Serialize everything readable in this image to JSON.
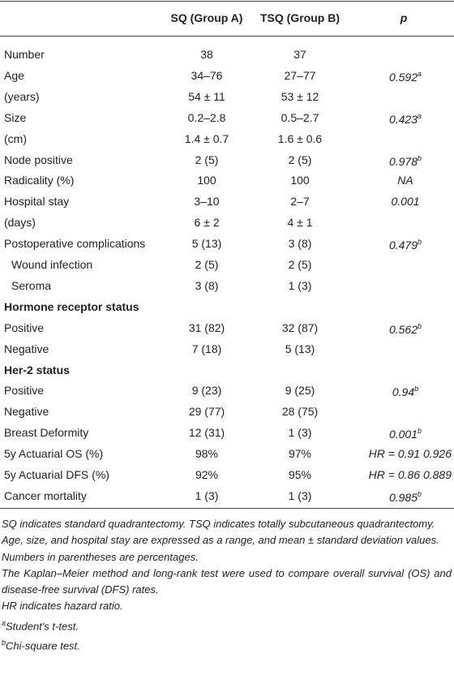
{
  "table": {
    "header": [
      "SQ (Group A)",
      "TSQ (Group B)",
      "p"
    ],
    "rows": [
      {
        "label": "Number",
        "sq": "38",
        "tsq": "37"
      },
      {
        "label": "Age",
        "sq": "34–76",
        "tsq": "27–77",
        "p": "0.592",
        "p_sup": "a"
      },
      {
        "label": "(years)",
        "sq": "54 ± 11",
        "tsq": "53 ± 12"
      },
      {
        "label": "Size",
        "sq": "0.2–2.8",
        "tsq": "0.5–2.7",
        "p": "0.423",
        "p_sup": "a"
      },
      {
        "label": "(cm)",
        "sq": "1.4 ± 0.7",
        "tsq": "1.6 ± 0.6"
      },
      {
        "label": "Node positive",
        "sq": "2 (5)",
        "tsq": "2 (5)",
        "p": "0.978",
        "p_sup": "b"
      },
      {
        "label": "Radicality (%)",
        "sq": "100",
        "tsq": "100",
        "p": "NA"
      },
      {
        "label": "Hospital stay",
        "sq": "3–10",
        "tsq": "2–7",
        "p": "0.001"
      },
      {
        "label": "(days)",
        "sq": "6 ± 2",
        "tsq": "4 ± 1"
      },
      {
        "label": "Postoperative complications",
        "sq": "5 (13)",
        "tsq": "3 (8)",
        "p": "0.479",
        "p_sup": "b",
        "items": [
          {
            "label": "Wound infection",
            "sq": "2 (5)",
            "tsq": "2 (5)"
          },
          {
            "label": "Seroma",
            "sq": "3 (8)",
            "tsq": "1 (3)"
          }
        ]
      },
      {
        "section": "Hormone receptor status"
      },
      {
        "label": "Positive",
        "sq": "31 (82)",
        "tsq": "32 (87)",
        "p": "0.562",
        "p_sup": "b"
      },
      {
        "label": "Negative",
        "sq": "7 (18)",
        "tsq": "5 (13)"
      },
      {
        "section": "Her-2 status"
      },
      {
        "label": "Positive",
        "sq": "9 (23)",
        "tsq": "9 (25)",
        "p": "0.94",
        "p_sup": "b"
      },
      {
        "label": "Negative",
        "sq": "29 (77)",
        "tsq": "28 (75)"
      },
      {
        "label": "Breast Deformity",
        "sq": "12 (31)",
        "tsq": "1 (3)",
        "p": "0.001",
        "p_sup": "b"
      },
      {
        "label": "5y Actuarial OS (%)",
        "sq": "98%",
        "tsq": "97%",
        "p": "HR = 0.91 0.926"
      },
      {
        "label": "5y Actuarial DFS (%)",
        "sq": "92%",
        "tsq": "95%",
        "p": "HR = 0.86 0.889"
      },
      {
        "label": "Cancer mortality",
        "sq": "1 (3)",
        "tsq": "1 (3)",
        "p": "0.985",
        "p_sup": "b"
      }
    ],
    "footnotes": [
      {
        "text": "SQ indicates standard quadrantectomy. TSQ indicates totally subcutaneous quadrantectomy."
      },
      {
        "text": "Age, size, and hospital stay are expressed as a range, and mean ± standard deviation values."
      },
      {
        "text": "Numbers in parentheses are percentages."
      },
      {
        "text": "The Kaplan–Meier method and long-rank test were used to compare overall survival (OS) and disease-free survival (DFS) rates."
      },
      {
        "text": "HR indicates hazard ratio."
      },
      {
        "sup": "a",
        "text": "Student's t-test."
      },
      {
        "sup": "b",
        "text": "Chi-square test."
      }
    ]
  }
}
